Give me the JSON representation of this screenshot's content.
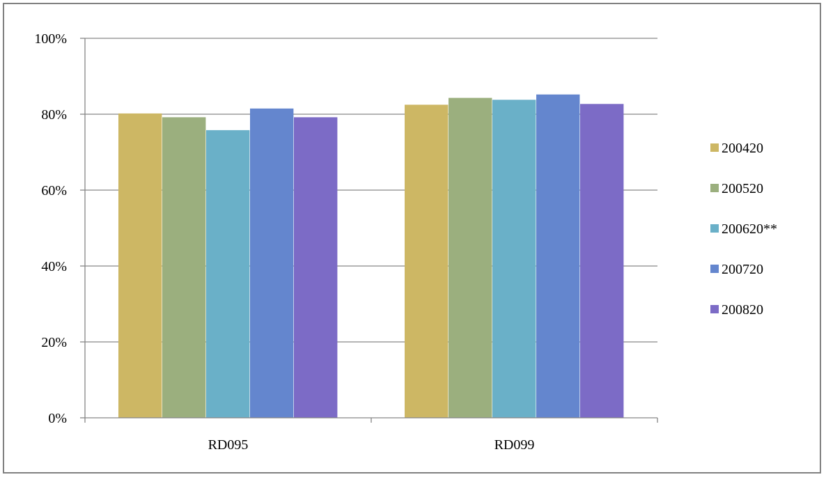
{
  "chart_data": {
    "type": "bar",
    "title": "",
    "xlabel": "",
    "ylabel": "",
    "categories": [
      "RD095",
      "RD099"
    ],
    "ylim": [
      0,
      100
    ],
    "yticks": [
      "0%",
      "20%",
      "40%",
      "60%",
      "80%",
      "100%"
    ],
    "ytick_values": [
      0,
      20,
      40,
      60,
      80,
      100
    ],
    "grid": true,
    "legend_position": "right",
    "series": [
      {
        "name": "200420",
        "color": "#CDB764",
        "values": [
          80.2,
          82.5
        ]
      },
      {
        "name": "200520",
        "color": "#9BAF7E",
        "values": [
          79.2,
          84.3
        ]
      },
      {
        "name": "200620**",
        "color": "#6AB0C8",
        "values": [
          75.8,
          83.8
        ]
      },
      {
        "name": "200720",
        "color": "#6486CE",
        "values": [
          81.5,
          85.2
        ]
      },
      {
        "name": "200820",
        "color": "#7C6BC6",
        "values": [
          79.2,
          82.7
        ]
      }
    ]
  }
}
